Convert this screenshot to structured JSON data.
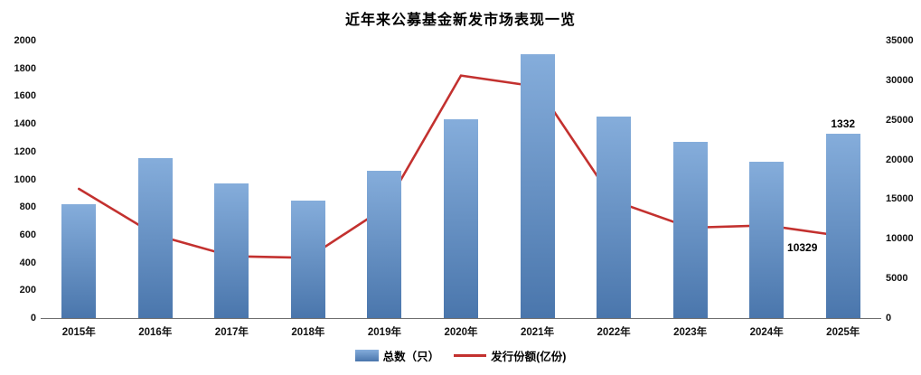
{
  "title": "近年来公募基金新发市场表现一览",
  "chart_data": {
    "type": "combo",
    "title": "近年来公募基金新发市场表现一览",
    "categories": [
      "2015年",
      "2016年",
      "2017年",
      "2018年",
      "2019年",
      "2020年",
      "2021年",
      "2022年",
      "2023年",
      "2024年",
      "2025年"
    ],
    "series": [
      {
        "name": "总数（只）",
        "type": "bar",
        "axis": "left",
        "color": "#5B8BC4",
        "color_top": "#85ADDB",
        "color_bottom": "#4A76AC",
        "values": [
          820,
          1150,
          970,
          850,
          1060,
          1430,
          1900,
          1455,
          1270,
          1130,
          1332
        ]
      },
      {
        "name": "发行份额(亿份)",
        "type": "line",
        "axis": "right",
        "color": "#C3312F",
        "values": [
          16300,
          10500,
          7800,
          7600,
          13900,
          30600,
          29200,
          14800,
          11400,
          11700,
          10329
        ]
      }
    ],
    "left_axis": {
      "min": 0,
      "max": 2000,
      "step": 200
    },
    "right_axis": {
      "min": 0,
      "max": 35000,
      "step": 5000
    },
    "data_labels": [
      {
        "series": 0,
        "index": 10,
        "text": "1332"
      },
      {
        "series": 1,
        "index": 10,
        "text": "10329"
      }
    ],
    "legend_position": "bottom",
    "grid": false
  }
}
